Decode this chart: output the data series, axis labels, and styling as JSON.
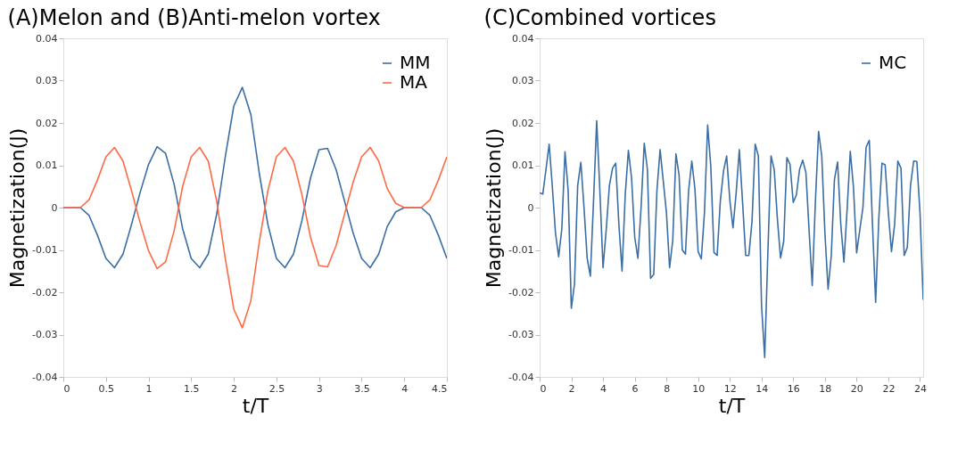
{
  "chart_data": [
    {
      "type": "line",
      "title": "(A)Melon and (B)Anti-melon vortex",
      "xlabel": "t/T",
      "ylabel": "Magnetization(J)",
      "x": [
        0,
        0.1,
        0.2,
        0.3,
        0.4,
        0.5,
        0.6,
        0.7,
        0.8,
        0.9,
        1.0,
        1.1,
        1.2,
        1.3,
        1.4,
        1.5,
        1.6,
        1.7,
        1.8,
        1.9,
        2.0,
        2.1,
        2.2,
        2.3,
        2.4,
        2.5,
        2.6,
        2.7,
        2.8,
        2.9,
        3.0,
        3.1,
        3.2,
        3.3,
        3.4,
        3.5,
        3.6,
        3.7,
        3.8,
        3.9,
        4.0,
        4.1,
        4.2,
        4.3,
        4.4,
        4.5
      ],
      "series": [
        {
          "name": "MM",
          "color": "#3b6ea5",
          "values": [
            0,
            0,
            0,
            -0.0018,
            -0.0065,
            -0.012,
            -0.0142,
            -0.011,
            -0.004,
            0.0035,
            0.0102,
            0.0144,
            0.0128,
            0.0055,
            -0.005,
            -0.012,
            -0.0142,
            -0.011,
            -0.0015,
            0.012,
            0.024,
            0.0284,
            0.022,
            0.008,
            -0.004,
            -0.012,
            -0.0142,
            -0.011,
            -0.003,
            0.007,
            0.0137,
            0.014,
            0.009,
            0.0015,
            -0.006,
            -0.012,
            -0.0142,
            -0.011,
            -0.0045,
            -0.001,
            0,
            0,
            0,
            -0.0018,
            -0.0065,
            -0.012
          ]
        },
        {
          "name": "MA",
          "color": "#ff6a45",
          "values": [
            0,
            0,
            0,
            0.0018,
            0.0065,
            0.012,
            0.0142,
            0.011,
            0.004,
            -0.0035,
            -0.0102,
            -0.0144,
            -0.0128,
            -0.0055,
            0.005,
            0.012,
            0.0142,
            0.011,
            0.0015,
            -0.012,
            -0.024,
            -0.0284,
            -0.022,
            -0.008,
            0.004,
            0.012,
            0.0142,
            0.011,
            0.003,
            -0.007,
            -0.0137,
            -0.014,
            -0.009,
            -0.0015,
            0.006,
            0.012,
            0.0142,
            0.011,
            0.0045,
            0.001,
            0,
            0,
            0,
            0.0018,
            0.0065,
            0.012
          ]
        }
      ],
      "xlim": [
        0,
        4.5
      ],
      "ylim": [
        -0.04,
        0.04
      ],
      "xticks": [
        0,
        0.5,
        1,
        1.5,
        2,
        2.5,
        3,
        3.5,
        4,
        4.5
      ],
      "yticks": [
        -0.04,
        -0.03,
        -0.02,
        -0.01,
        0,
        0.01,
        0.02,
        0.03,
        0.04
      ],
      "legend": "top right"
    },
    {
      "type": "line",
      "title": "(C)Combined vortices",
      "xlabel": "t/T",
      "ylabel": "Magnetization(J)",
      "x": [
        0,
        0.2,
        0.4,
        0.6,
        0.8,
        1.0,
        1.2,
        1.4,
        1.6,
        1.8,
        2.0,
        2.2,
        2.4,
        2.6,
        2.8,
        3.0,
        3.2,
        3.4,
        3.6,
        3.8,
        4.0,
        4.2,
        4.4,
        4.6,
        4.8,
        5.0,
        5.2,
        5.4,
        5.6,
        5.8,
        6.0,
        6.2,
        6.4,
        6.6,
        6.8,
        7.0,
        7.2,
        7.4,
        7.6,
        7.8,
        8.0,
        8.2,
        8.4,
        8.6,
        8.8,
        9.0,
        9.2,
        9.4,
        9.6,
        9.8,
        10.0,
        10.2,
        10.4,
        10.6,
        10.8,
        11.0,
        11.2,
        11.4,
        11.6,
        11.8,
        12.0,
        12.2,
        12.4,
        12.6,
        12.8,
        13.0,
        13.2,
        13.4,
        13.6,
        13.8,
        14.0,
        14.2,
        14.4,
        14.6,
        14.8,
        15.0,
        15.2,
        15.4,
        15.6,
        15.8,
        16.0,
        16.2,
        16.4,
        16.6,
        16.8,
        17.0,
        17.2,
        17.4,
        17.6,
        17.8,
        18.0,
        18.2,
        18.4,
        18.6,
        18.8,
        19.0,
        19.2,
        19.4,
        19.6,
        19.8,
        20.0,
        20.2,
        20.4,
        20.6,
        20.8,
        21.0,
        21.2,
        21.4,
        21.6,
        21.8,
        22.0,
        22.2,
        22.4,
        22.6,
        22.8,
        23.0,
        23.2,
        23.4,
        23.6,
        23.8,
        24.0,
        24.2
      ],
      "series": [
        {
          "name": "MC",
          "color": "#3b6ea5",
          "values": [
            0.0035,
            0.0032,
            0.009,
            0.015,
            0.005,
            -0.006,
            -0.0116,
            -0.005,
            0.0132,
            0.004,
            -0.0238,
            -0.018,
            0.0052,
            0.0107,
            0,
            -0.012,
            -0.0162,
            0.0015,
            0.0205,
            0.004,
            -0.0142,
            -0.0053,
            0.0052,
            0.0093,
            0.0105,
            -0.004,
            -0.015,
            0.003,
            0.0135,
            0.007,
            -0.007,
            -0.012,
            0,
            0.0152,
            0.009,
            -0.0167,
            -0.0158,
            0.004,
            0.0137,
            0.0063,
            -0.0012,
            -0.0142,
            -0.0077,
            0.0127,
            0.0076,
            -0.01,
            -0.011,
            0.004,
            0.011,
            0.0044,
            -0.0104,
            -0.0121,
            -0.0012,
            0.0195,
            0.0097,
            -0.0106,
            -0.0113,
            0.0015,
            0.0086,
            0.0122,
            0.0018,
            -0.0048,
            0.0035,
            0.0137,
            0.0015,
            -0.0113,
            -0.0113,
            -0.0033,
            0.015,
            0.0122,
            -0.023,
            -0.0354,
            -0.0107,
            0.0122,
            0.009,
            -0.0026,
            -0.0119,
            -0.008,
            0.0118,
            0.0102,
            0.0012,
            0.003,
            0.009,
            0.0112,
            0.0083,
            -0.0053,
            -0.0184,
            0.0015,
            0.018,
            0.0122,
            -0.006,
            -0.0193,
            -0.0114,
            0.0066,
            0.0108,
            -0.0039,
            -0.0129,
            -0.0005,
            0.0133,
            0.0049,
            -0.0107,
            -0.0053,
            0.0001,
            0.0143,
            0.0159,
            -0.0039,
            -0.0224,
            -0.0026,
            0.0105,
            0.0101,
            -0.0012,
            -0.0104,
            -0.0039,
            0.011,
            0.0093,
            -0.0113,
            -0.0094,
            0.0052,
            0.011,
            0.0109,
            -0.0012,
            -0.0218
          ]
        }
      ],
      "xlim": [
        0,
        24.2
      ],
      "ylim": [
        -0.04,
        0.04
      ],
      "xticks": [
        0,
        2,
        4,
        6,
        8,
        10,
        12,
        14,
        16,
        18,
        20,
        22,
        24
      ],
      "yticks": [
        -0.04,
        -0.03,
        -0.02,
        -0.01,
        0,
        0.01,
        0.02,
        0.03,
        0.04
      ],
      "legend": "top right"
    }
  ]
}
